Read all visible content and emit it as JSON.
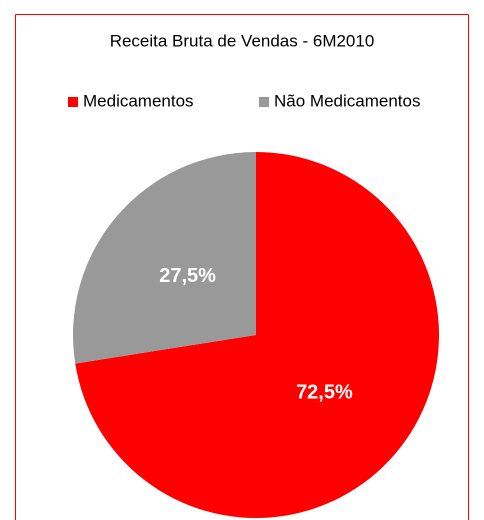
{
  "chart_data": {
    "type": "pie",
    "title": "Receita Bruta de Vendas - 6M2010",
    "categories": [
      "Medicamentos",
      "Não Medicamentos"
    ],
    "values": [
      72.5,
      27.5
    ],
    "value_labels": [
      "72,5%",
      "27,5%"
    ],
    "colors": [
      "#ff0000",
      "#999999"
    ],
    "legend": "top"
  }
}
